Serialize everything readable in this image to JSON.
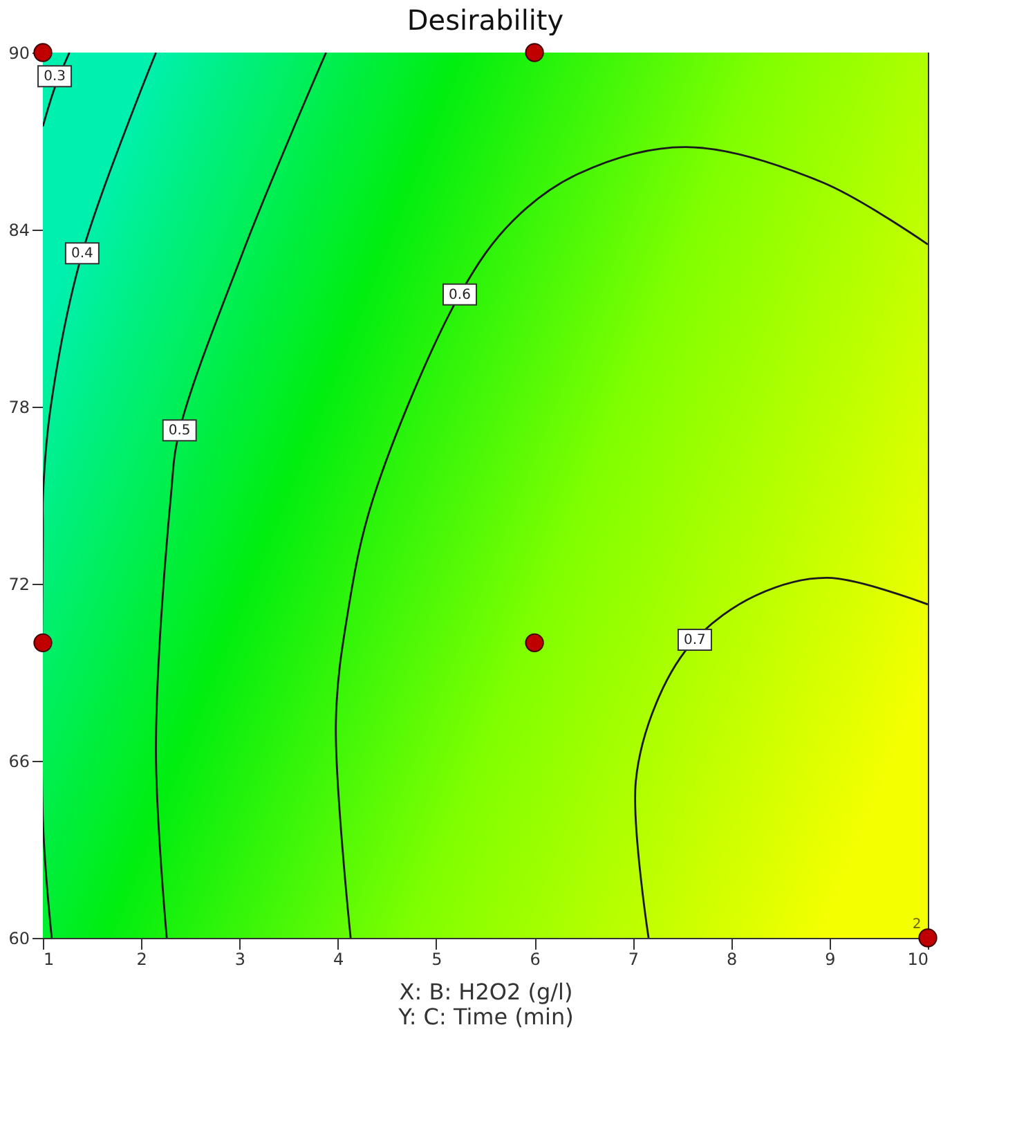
{
  "chart_data": {
    "type": "line",
    "title": "Desirability",
    "xlabel": "X: B: H2O2 (g/l)",
    "xlim": [
      1,
      10
    ],
    "xticks": [
      1,
      2,
      3,
      4,
      5,
      6,
      7,
      8,
      9,
      10
    ],
    "ylim": [
      60,
      90
    ],
    "yticks": [
      60,
      66,
      72,
      78,
      84,
      90
    ],
    "grid": false,
    "series": [
      {
        "color": "#1a1a1a",
        "x": [
          1.27,
          1.12,
          1.0
        ],
        "values": [
          90,
          88.8,
          87.5
        ]
      },
      {
        "color": "#1a1a1a",
        "x": [
          2.15,
          1.4,
          1.08,
          1.0,
          1.0,
          1.0,
          1.09
        ],
        "values": [
          90,
          83.2,
          78,
          74.9,
          73.9,
          64,
          60
        ]
      },
      {
        "color": "#1a1a1a",
        "x": [
          3.88,
          3.52,
          3.03,
          2.39,
          2.3,
          2.15,
          2.26
        ],
        "values": [
          90,
          87.2,
          83.2,
          77.2,
          74.9,
          66.4,
          60
        ]
      },
      {
        "color": "#1a1a1a",
        "x": [
          10,
          8.93,
          7.54,
          6.45,
          5.78,
          5.24,
          4.36,
          4.1,
          3.98,
          4.13
        ],
        "values": [
          83.5,
          85.6,
          86.8,
          85.9,
          84.3,
          81.8,
          74.9,
          71,
          67.3,
          60
        ]
      },
      {
        "color": "#1a1a1a",
        "x": [
          10,
          8.98,
          8.25,
          7.63,
          7.27,
          7.03,
          7.16
        ],
        "values": [
          71.3,
          72.2,
          71.6,
          70.1,
          68.2,
          65.3,
          60
        ]
      },
      {
        "type": "scatter",
        "color": "#c00000",
        "marker": "circle",
        "x": [
          1,
          6,
          1,
          6,
          10
        ],
        "values": [
          90,
          90,
          70,
          70,
          60
        ]
      }
    ],
    "annotations": [
      {
        "text": "0.3",
        "x": 1.12,
        "y": 89.2
      },
      {
        "text": "0.4",
        "x": 1.4,
        "y": 83.2
      },
      {
        "text": "0.5",
        "x": 2.39,
        "y": 77.2
      },
      {
        "text": "0.6",
        "x": 5.24,
        "y": 81.8
      },
      {
        "text": "0.7",
        "x": 7.63,
        "y": 70.1
      },
      {
        "text": "2",
        "x": 10,
        "y": 60
      },
      "Y: C: Time (min)"
    ]
  }
}
